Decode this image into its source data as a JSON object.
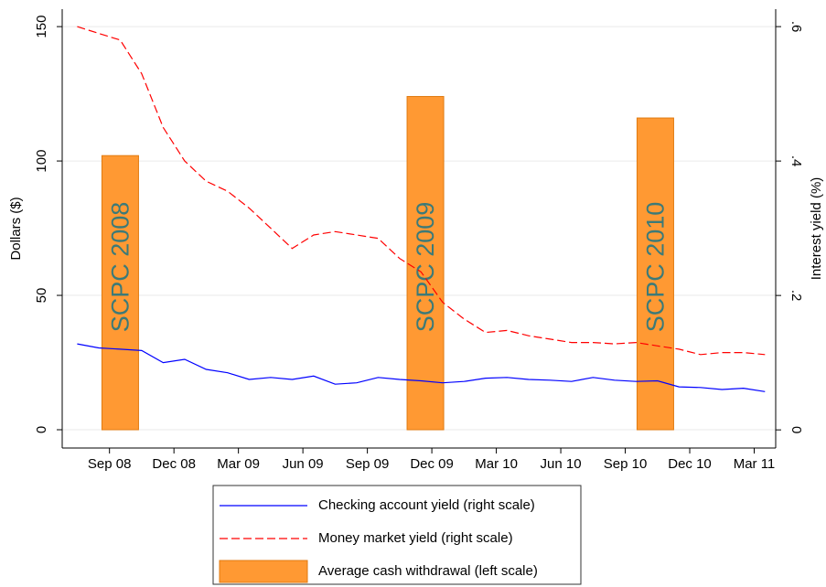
{
  "chart_data": {
    "type": "combo",
    "x": [
      -1.5,
      -0.5,
      0.5,
      1.5,
      2.5,
      3.5,
      4.5,
      5.5,
      6.5,
      7.5,
      8.5,
      9.5,
      10.5,
      11.5,
      12.5,
      13.5,
      14.5,
      15.5,
      16.5,
      17.5,
      18.5,
      19.5,
      20.5,
      21.5,
      22.5,
      23.5,
      24.5,
      25.5,
      26.5,
      27.5,
      28.5,
      29.5,
      30.5
    ],
    "series": [
      {
        "name": "Checking account yield (right scale)",
        "type": "line",
        "axis": "y2",
        "color": "#0000ff",
        "values": [
          0.128,
          0.122,
          0.12,
          0.118,
          0.1,
          0.105,
          0.09,
          0.085,
          0.075,
          0.078,
          0.075,
          0.08,
          0.068,
          0.07,
          0.078,
          0.075,
          0.073,
          0.07,
          0.072,
          0.077,
          0.078,
          0.075,
          0.074,
          0.072,
          0.078,
          0.074,
          0.072,
          0.073,
          0.064,
          0.063,
          0.06,
          0.062,
          0.057
        ]
      },
      {
        "name": "Money market yield (right scale)",
        "type": "line",
        "axis": "y2",
        "color": "#ff0000",
        "dash": true,
        "values": [
          0.6,
          0.59,
          0.58,
          0.53,
          0.45,
          0.4,
          0.37,
          0.355,
          0.33,
          0.3,
          0.27,
          0.29,
          0.295,
          0.29,
          0.285,
          0.255,
          0.235,
          0.19,
          0.165,
          0.145,
          0.148,
          0.14,
          0.135,
          0.13,
          0.13,
          0.128,
          0.13,
          0.125,
          0.12,
          0.112,
          0.115,
          0.115,
          0.112
        ]
      },
      {
        "name": "Average cash withdrawal (left scale)",
        "type": "bar",
        "color": "#ff9933",
        "x": [
          0.5,
          14.7,
          25.4
        ],
        "values": [
          102,
          124,
          116
        ],
        "labels": [
          "SCPC 2008",
          "SCPC 2009",
          "SCPC 2010"
        ]
      }
    ],
    "y_label": "Dollars ($)",
    "y2_label": "Interest yield (%)",
    "xlim": [
      -2.2,
      31
    ],
    "ylim": [
      -6.8,
      156.5
    ],
    "y2lim": [
      -0.027,
      0.626
    ],
    "xticks": [
      {
        "value": 0,
        "label": "Sep 08"
      },
      {
        "value": 3,
        "label": "Dec 08"
      },
      {
        "value": 6,
        "label": "Mar 09"
      },
      {
        "value": 9,
        "label": "Jun 09"
      },
      {
        "value": 12,
        "label": "Sep 09"
      },
      {
        "value": 15,
        "label": "Dec 09"
      },
      {
        "value": 18,
        "label": "Mar 10"
      },
      {
        "value": 21,
        "label": "Jun 10"
      },
      {
        "value": 24,
        "label": "Sep 10"
      },
      {
        "value": 27,
        "label": "Dec 10"
      },
      {
        "value": 30,
        "label": "Mar 11"
      }
    ],
    "yticks": [
      0,
      50,
      100,
      150
    ],
    "y2ticks": [
      0,
      {
        "value": 0.2,
        "label": ".2"
      },
      {
        "value": 0.4,
        "label": ".4"
      },
      {
        "value": 0.6,
        "label": ".6"
      }
    ],
    "grid": true
  }
}
